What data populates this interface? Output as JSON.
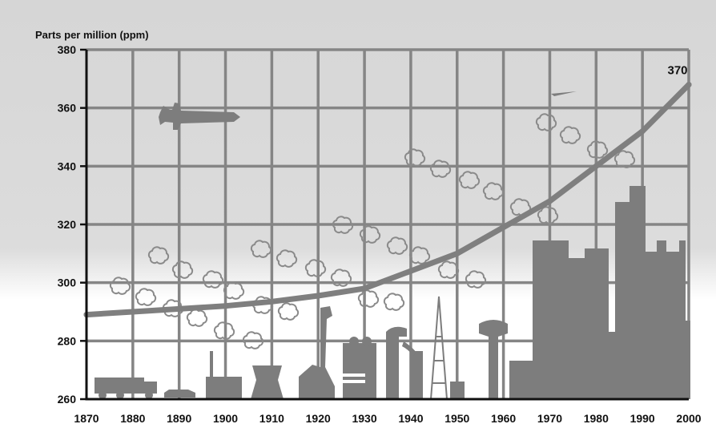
{
  "chart_data": {
    "type": "line",
    "title": "",
    "ylabel": "Parts per million (ppm)",
    "xlabel": "",
    "xlim": [
      1870,
      2000
    ],
    "ylim": [
      260,
      380
    ],
    "x_ticks": [
      1870,
      1880,
      1890,
      1900,
      1910,
      1920,
      1930,
      1940,
      1950,
      1960,
      1970,
      1980,
      1990,
      2000
    ],
    "y_ticks": [
      260,
      280,
      300,
      320,
      340,
      360,
      380
    ],
    "grid": true,
    "end_label": "370",
    "series": [
      {
        "x": [
          1870,
          1880,
          1890,
          1900,
          1910,
          1920,
          1930,
          1940,
          1950,
          1960,
          1970,
          1980,
          1990,
          2000
        ],
        "values": [
          289,
          290,
          291,
          292,
          293.5,
          295.5,
          298,
          304,
          310,
          319,
          328,
          340,
          352,
          368
        ]
      }
    ],
    "colors": {
      "line": "#7f7f7f",
      "grid": "#858585",
      "silhouette": "#7d7d7d",
      "background_top": "#d6d6d6",
      "background_bottom": "#ffffff"
    }
  }
}
